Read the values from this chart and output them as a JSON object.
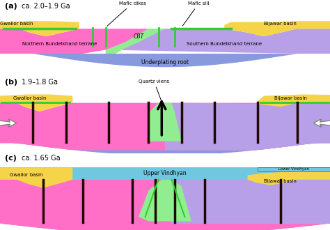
{
  "colors": {
    "magenta": "#FF6EC7",
    "purple": "#B8A0E8",
    "yellow": "#F5D44A",
    "blue_under": "#8899DD",
    "green_cbt": "#90EE90",
    "green_line": "#32CD32",
    "dark": "#1C0A00",
    "white": "#FFFFFF",
    "cyan_vindhyan": "#70C8E0",
    "bg": "#FFFFFF"
  },
  "panel_a": {
    "label": "(a)",
    "title": "ca. 2.0–1.9 Ga",
    "gwalior_label": "Gwalior basin",
    "bijawar_label": "Bijawar basin",
    "north_label": "Northern Bundelkhand terrane",
    "south_label": "Southern Bundelkhand terrane",
    "cbt_label": "CBT",
    "under_label": "Underplating root",
    "mafic_dikes_label": "Mafic dikes",
    "mafic_sill_label": "Mafic sill"
  },
  "panel_b": {
    "label": "(b)",
    "title": "1.9–1.8 Ga",
    "gwalior_label": "Gwalior basin",
    "bijawar_label": "Bijawar basin",
    "quartz_label": "Quartz viens"
  },
  "panel_c": {
    "label": "(c)",
    "title": "ca. 1.65 Ga",
    "gwalior_label": "Gwalior basin",
    "bijawar_label": "Bijawar basin",
    "upper_vindhyan_label": "Upper Vindhyan",
    "lower_vindhyan_label": "Lower Vindhyan"
  }
}
